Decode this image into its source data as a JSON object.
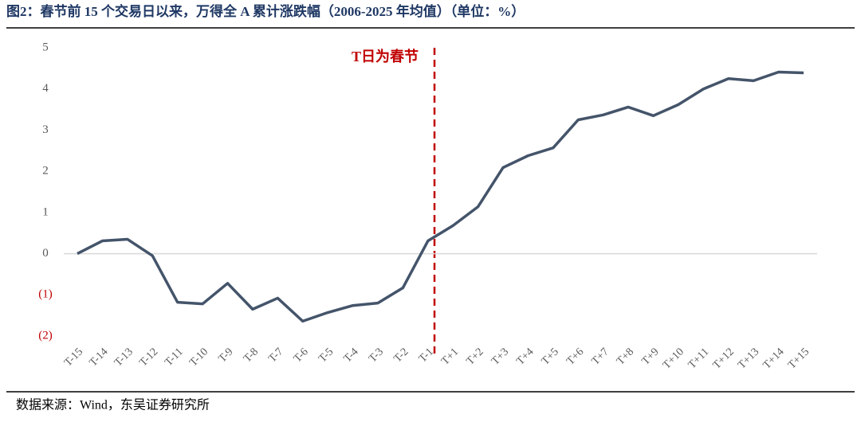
{
  "chart_data": {
    "type": "line",
    "title": "图2：春节前 15 个交易日以来，万得全 A 累计涨跌幅（2006-2025 年均值）（单位：%）",
    "source": "数据来源：Wind，东吴证券研究所",
    "annotation": "T日为春节",
    "categories": [
      "T-15",
      "T-14",
      "T-13",
      "T-12",
      "T-11",
      "T-10",
      "T-9",
      "T-8",
      "T-7",
      "T-6",
      "T-5",
      "T-4",
      "T-3",
      "T-2",
      "T-1",
      "T+1",
      "T+2",
      "T+3",
      "T+4",
      "T+5",
      "T+6",
      "T+7",
      "T+8",
      "T+9",
      "T+10",
      "T+11",
      "T+12",
      "T+13",
      "T+14",
      "T+15"
    ],
    "values": [
      0.0,
      0.31,
      0.35,
      -0.05,
      -1.18,
      -1.22,
      -0.72,
      -1.35,
      -1.08,
      -1.64,
      -1.43,
      -1.26,
      -1.2,
      -0.83,
      0.31,
      0.68,
      1.14,
      2.09,
      2.38,
      2.57,
      3.25,
      3.37,
      3.56,
      3.35,
      3.62,
      4.0,
      4.25,
      4.2,
      4.41,
      4.39
    ],
    "color": "#44546a",
    "ylim": [
      -2,
      5
    ],
    "yticks": [
      {
        "value": -2,
        "label": "(2)"
      },
      {
        "value": -1,
        "label": "(1)"
      },
      0,
      1,
      2,
      3,
      4,
      5
    ],
    "negative_tick_color": "#c00000",
    "zero_line": true
  }
}
